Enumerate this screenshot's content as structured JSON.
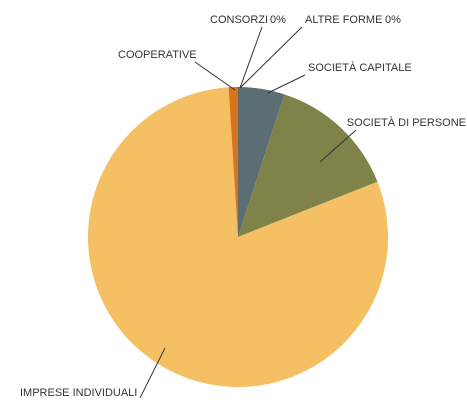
{
  "chart_data": {
    "type": "pie",
    "categories": [
      "SOCIETÀ CAPITALE",
      "SOCIETÀ DI PERSONE",
      "IMPRESE INDIVIDUALI",
      "COOPERATIVE",
      "CONSORZI",
      "ALTRE FORME"
    ],
    "values": [
      5,
      14,
      80,
      1,
      0,
      0
    ],
    "value_labels": [
      "5%",
      "14%",
      "80%",
      "1%",
      "0%",
      "0%"
    ],
    "colors": [
      "#5a6e73",
      "#7f834a",
      "#f5c063",
      "#d9731c",
      "#b0b0b0",
      "#909090"
    ]
  }
}
